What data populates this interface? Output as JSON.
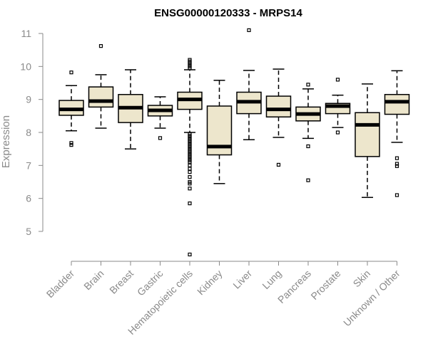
{
  "chart_data": {
    "type": "boxplot",
    "title": "ENSG00000120333 - MRPS14",
    "xlabel": "",
    "ylabel": "Expression",
    "ylim": [
      4.2,
      11.2
    ],
    "yticks": [
      5,
      6,
      7,
      8,
      9,
      10,
      11
    ],
    "box_fill": "#ede6cc",
    "categories": [
      "Bladder",
      "Brain",
      "Breast",
      "Gastric",
      "Hematopoietic cells",
      "Kidney",
      "Liver",
      "Lung",
      "Pancreas",
      "Prostate",
      "Skin",
      "Unknown / Other"
    ],
    "series": [
      {
        "name": "Bladder",
        "min": 8.05,
        "q1": 8.52,
        "median": 8.7,
        "q3": 8.97,
        "max": 9.42,
        "outliers": [
          9.82,
          7.62,
          7.68
        ]
      },
      {
        "name": "Brain",
        "min": 8.13,
        "q1": 8.77,
        "median": 8.95,
        "q3": 9.38,
        "max": 9.75,
        "outliers": [
          10.62
        ]
      },
      {
        "name": "Breast",
        "min": 7.5,
        "q1": 8.3,
        "median": 8.75,
        "q3": 9.15,
        "max": 9.9,
        "outliers": []
      },
      {
        "name": "Gastric",
        "min": 8.13,
        "q1": 8.5,
        "median": 8.67,
        "q3": 8.82,
        "max": 9.08,
        "outliers": [
          7.83
        ]
      },
      {
        "name": "Hematopoietic cells",
        "min": 8.0,
        "q1": 8.7,
        "median": 9.0,
        "q3": 9.22,
        "max": 9.9,
        "outliers": [
          10.2,
          10.15,
          10.1,
          10.05,
          10.0,
          9.95,
          7.95,
          7.9,
          7.85,
          7.8,
          7.75,
          7.7,
          7.65,
          7.6,
          7.55,
          7.5,
          7.45,
          7.4,
          7.35,
          7.3,
          7.25,
          7.2,
          7.15,
          7.1,
          7.0,
          6.9,
          6.8,
          6.65,
          6.5,
          6.45,
          6.3,
          5.85,
          4.3
        ]
      },
      {
        "name": "Kidney",
        "min": 6.45,
        "q1": 7.32,
        "median": 7.57,
        "q3": 8.8,
        "max": 9.58,
        "outliers": []
      },
      {
        "name": "Liver",
        "min": 7.78,
        "q1": 8.57,
        "median": 8.93,
        "q3": 9.22,
        "max": 9.88,
        "outliers": [
          11.1
        ]
      },
      {
        "name": "Lung",
        "min": 7.85,
        "q1": 8.47,
        "median": 8.7,
        "q3": 9.1,
        "max": 9.92,
        "outliers": [
          7.02
        ]
      },
      {
        "name": "Pancreas",
        "min": 7.82,
        "q1": 8.35,
        "median": 8.56,
        "q3": 8.77,
        "max": 9.32,
        "outliers": [
          9.45,
          7.58,
          6.55
        ]
      },
      {
        "name": "Prostate",
        "min": 8.15,
        "q1": 8.57,
        "median": 8.8,
        "q3": 8.88,
        "max": 9.13,
        "outliers": [
          9.6,
          8.0
        ]
      },
      {
        "name": "Skin",
        "min": 6.03,
        "q1": 7.27,
        "median": 8.23,
        "q3": 8.6,
        "max": 9.47,
        "outliers": []
      },
      {
        "name": "Unknown / Other",
        "min": 7.7,
        "q1": 8.55,
        "median": 8.93,
        "q3": 9.15,
        "max": 9.87,
        "outliers": [
          7.22,
          7.05,
          6.98,
          6.1
        ]
      }
    ]
  }
}
